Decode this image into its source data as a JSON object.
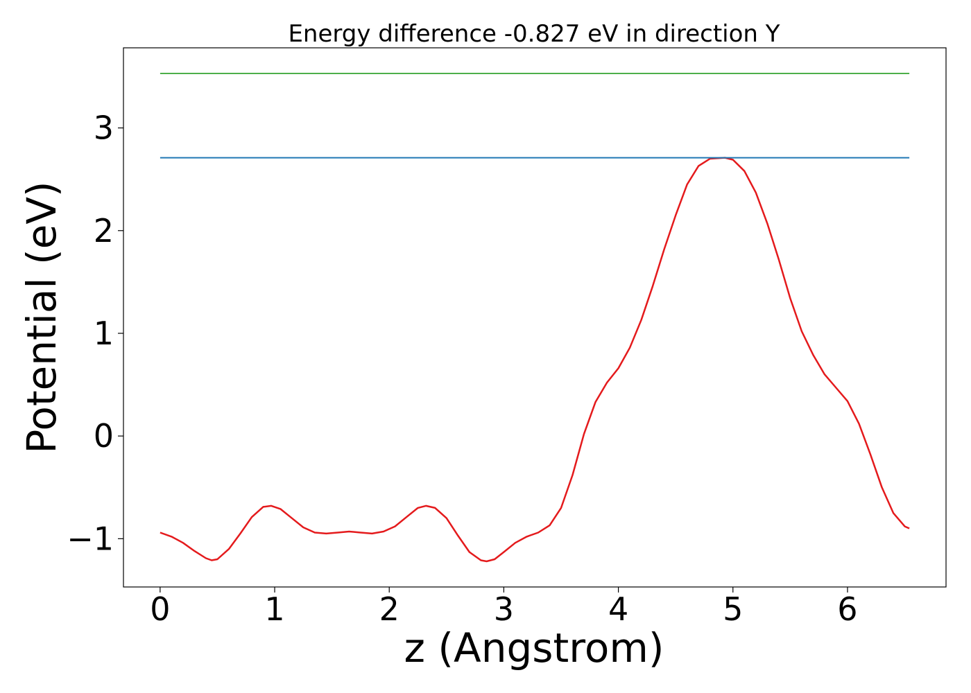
{
  "chart_data": {
    "type": "line",
    "title": "Energy difference -0.827 eV in direction Y",
    "xlabel": "z (Angstrom)",
    "ylabel": "Potential (eV)",
    "xlim": [
      -0.32,
      6.86
    ],
    "ylim": [
      -1.47,
      3.78
    ],
    "xticks": [
      0,
      1,
      2,
      3,
      4,
      5,
      6
    ],
    "xtick_labels": [
      "0",
      "1",
      "2",
      "3",
      "4",
      "5",
      "6"
    ],
    "yticks": [
      -1,
      0,
      1,
      2,
      3
    ],
    "ytick_labels": [
      "−1",
      "0",
      "1",
      "2",
      "3"
    ],
    "grid": false,
    "legend": "none",
    "series": [
      {
        "color": "#e41a1c",
        "x": [
          0,
          0.1,
          0.2,
          0.3,
          0.4,
          0.45,
          0.5,
          0.6,
          0.7,
          0.8,
          0.9,
          0.97,
          1.05,
          1.15,
          1.25,
          1.35,
          1.45,
          1.55,
          1.65,
          1.75,
          1.85,
          1.95,
          2.05,
          2.15,
          2.25,
          2.32,
          2.4,
          2.5,
          2.6,
          2.7,
          2.8,
          2.85,
          2.92,
          3.0,
          3.1,
          3.2,
          3.3,
          3.4,
          3.5,
          3.6,
          3.7,
          3.8,
          3.9,
          4.0,
          4.1,
          4.2,
          4.3,
          4.4,
          4.5,
          4.6,
          4.7,
          4.8,
          4.93,
          5.0,
          5.1,
          5.2,
          5.3,
          5.4,
          5.5,
          5.6,
          5.7,
          5.8,
          5.9,
          6.0,
          6.1,
          6.2,
          6.3,
          6.4,
          6.5,
          6.54
        ],
        "values": [
          -0.94,
          -0.98,
          -1.04,
          -1.12,
          -1.19,
          -1.21,
          -1.2,
          -1.1,
          -0.95,
          -0.79,
          -0.69,
          -0.68,
          -0.71,
          -0.8,
          -0.89,
          -0.94,
          -0.95,
          -0.94,
          -0.93,
          -0.94,
          -0.95,
          -0.93,
          -0.88,
          -0.79,
          -0.7,
          -0.68,
          -0.7,
          -0.8,
          -0.97,
          -1.13,
          -1.21,
          -1.22,
          -1.2,
          -1.13,
          -1.04,
          -0.98,
          -0.94,
          -0.87,
          -0.7,
          -0.38,
          0.02,
          0.33,
          0.52,
          0.66,
          0.86,
          1.13,
          1.46,
          1.82,
          2.15,
          2.45,
          2.63,
          2.7,
          2.71,
          2.69,
          2.58,
          2.37,
          2.07,
          1.72,
          1.34,
          1.02,
          0.79,
          0.6,
          0.47,
          0.34,
          0.12,
          -0.18,
          -0.5,
          -0.75,
          -0.88,
          -0.9
        ]
      },
      {
        "color": "#1f77b4",
        "x": [
          0,
          6.54
        ],
        "values": [
          2.71,
          2.71
        ]
      },
      {
        "color": "#4daf4a",
        "x": [
          0,
          6.54
        ],
        "values": [
          3.53,
          3.53
        ]
      }
    ]
  }
}
